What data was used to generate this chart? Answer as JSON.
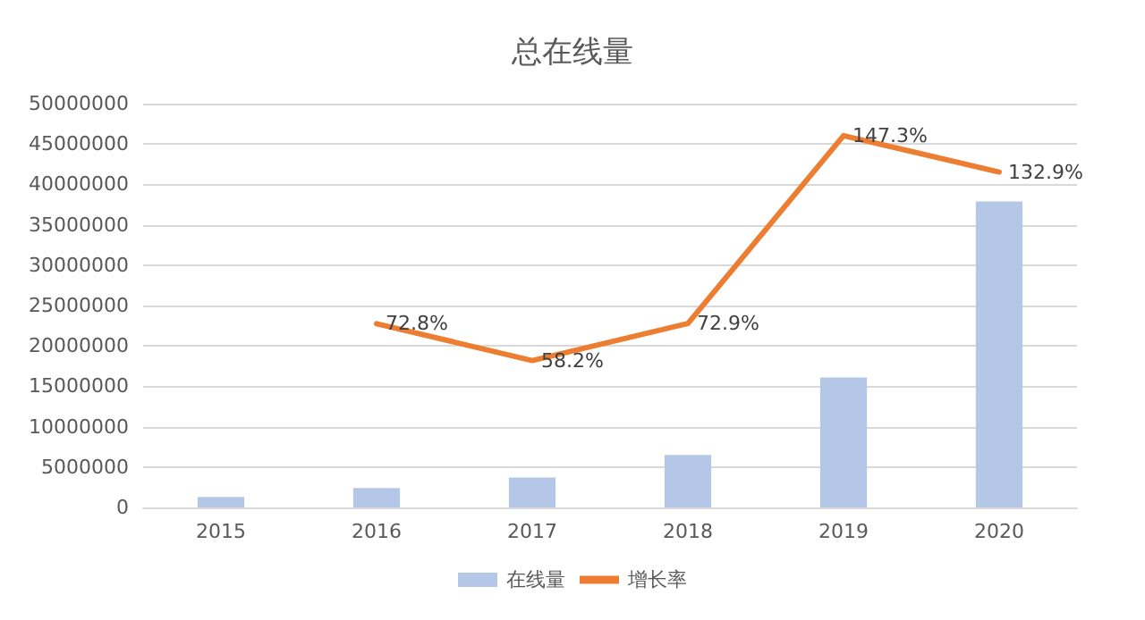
{
  "chart_data": {
    "type": "bar",
    "title": "总在线量",
    "categories": [
      "2015",
      "2016",
      "2017",
      "2018",
      "2019",
      "2020"
    ],
    "series": [
      {
        "name": "在线量",
        "color": "#b4c7e7",
        "values": [
          1300000,
          2400000,
          3700000,
          6500000,
          16100000,
          37900000
        ]
      },
      {
        "name": "增长率",
        "type": "line",
        "axis": "y2",
        "color": "#ed7d31",
        "values": [
          null,
          72.8,
          58.2,
          72.9,
          147.3,
          132.9
        ],
        "value_labels": [
          null,
          "72.8%",
          "58.2%",
          "72.9%",
          "147.3%",
          "132.9%"
        ]
      }
    ],
    "ylim": [
      0,
      50000000
    ],
    "yticks": [
      0,
      5000000,
      10000000,
      15000000,
      20000000,
      25000000,
      30000000,
      35000000,
      40000000,
      45000000,
      50000000
    ],
    "y2lim": [
      0,
      160
    ],
    "grid": "y",
    "legend": "bottom",
    "marker": "none",
    "line_style": "solid"
  }
}
